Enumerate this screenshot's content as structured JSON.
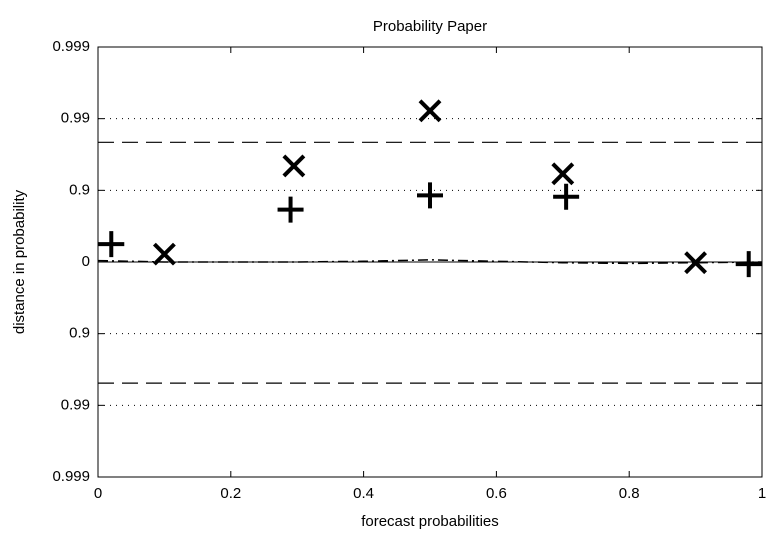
{
  "chart_data": {
    "type": "scatter",
    "title": "Probability Paper",
    "xlabel": "forecast probabilities",
    "ylabel": "distance in probability",
    "xlim": [
      0,
      1
    ],
    "xticks": [
      0,
      0.2,
      0.4,
      0.6,
      0.8,
      1
    ],
    "ylim": [
      -3,
      3
    ],
    "yticks": [
      {
        "value": -3,
        "label": "0.999"
      },
      {
        "value": -2,
        "label": "0.99"
      },
      {
        "value": -1,
        "label": "0.9"
      },
      0,
      {
        "value": 1,
        "label": "0.9"
      },
      {
        "value": 2,
        "label": "0.99"
      },
      {
        "value": 3,
        "label": "0.999"
      }
    ],
    "grid": true,
    "reference_lines": [
      1.67,
      -1.69
    ],
    "line": {
      "color": "#000",
      "x": [
        0,
        0.1,
        0.2,
        0.3,
        0.4,
        0.5,
        0.6,
        0.7,
        0.8,
        0.9,
        1
      ],
      "values": [
        0.02,
        0,
        0,
        0,
        0.01,
        0.03,
        0.01,
        -0.01,
        -0.02,
        -0.01,
        0
      ]
    },
    "series": [
      {
        "marker": "plus",
        "color": "#000",
        "x": [
          0.02,
          0.29,
          0.5,
          0.705,
          0.98
        ],
        "values": [
          0.25,
          0.73,
          0.93,
          0.91,
          -0.03
        ]
      },
      {
        "marker": "cross",
        "color": "#000",
        "x": [
          0.1,
          0.295,
          0.5,
          0.7,
          0.9
        ],
        "values": [
          0.11,
          1.34,
          2.11,
          1.23,
          -0.01
        ]
      }
    ]
  }
}
